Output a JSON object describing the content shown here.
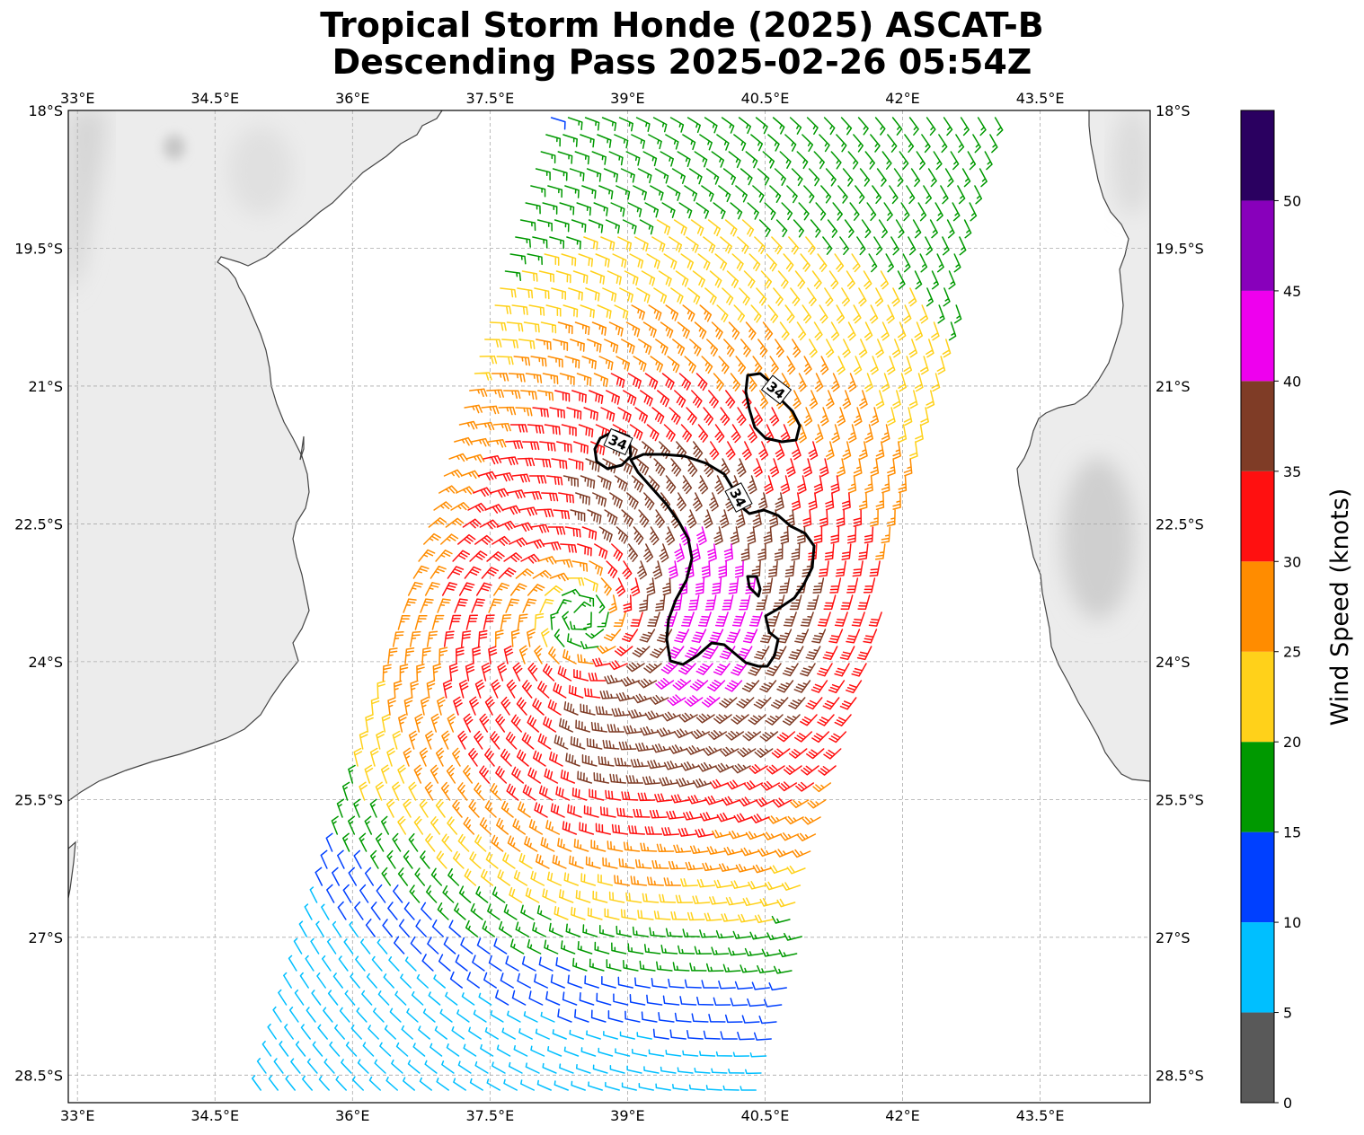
{
  "title": {
    "line1": "Tropical Storm Honde (2025) ASCAT-B",
    "line2": "Descending Pass 2025-02-26 05:54Z"
  },
  "map": {
    "lon_ticks": [
      "33°E",
      "34.5°E",
      "36°E",
      "37.5°E",
      "39°E",
      "40.5°E",
      "42°E",
      "43.5°E"
    ],
    "lat_ticks": [
      "18°S",
      "19.5°S",
      "21°S",
      "22.5°S",
      "24°S",
      "25.5°S",
      "27°S",
      "28.5°S"
    ],
    "lon_range": [
      32.9,
      44.7
    ],
    "lat_range": [
      -28.8,
      -18.0
    ],
    "gridlines": true,
    "contour_level_label": "34",
    "storm_center": {
      "lon": 38.5,
      "lat": -23.5
    },
    "land_color": "#e8e8e8",
    "coast_color": "#444444"
  },
  "colorbar": {
    "label": "Wind Speed (knots)",
    "tick_labels": [
      "0",
      "5",
      "10",
      "15",
      "20",
      "25",
      "30",
      "35",
      "40",
      "45",
      "50"
    ],
    "bins": [
      {
        "min": 0,
        "max": 5,
        "color": "#595959"
      },
      {
        "min": 5,
        "max": 10,
        "color": "#00bfff"
      },
      {
        "min": 10,
        "max": 15,
        "color": "#0040ff"
      },
      {
        "min": 15,
        "max": 20,
        "color": "#009900"
      },
      {
        "min": 20,
        "max": 25,
        "color": "#ffd11a"
      },
      {
        "min": 25,
        "max": 30,
        "color": "#ff8c00"
      },
      {
        "min": 30,
        "max": 35,
        "color": "#ff1010"
      },
      {
        "min": 35,
        "max": 40,
        "color": "#7f3c26"
      },
      {
        "min": 40,
        "max": 45,
        "color": "#ee00ee"
      },
      {
        "min": 45,
        "max": 50,
        "color": "#8800bb"
      },
      {
        "min": 50,
        "max": 55,
        "color": "#2a0060"
      }
    ]
  }
}
